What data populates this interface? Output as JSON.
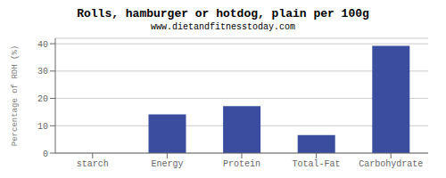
{
  "chart_data": {
    "type": "bar",
    "title": "Rolls, hamburger or hotdog, plain per 100g",
    "subtitle": "www.dietandfitnesstoday.com",
    "ylabel": "Percentage of RDH (%)",
    "categories": [
      "starch",
      "Energy",
      "Protein",
      "Total-Fat",
      "Carbohydrate"
    ],
    "values": [
      0,
      14.2,
      17.2,
      6.6,
      39.2
    ],
    "color": "#3a4d9f",
    "ylim": [
      0,
      42
    ],
    "yticks": [
      0,
      10,
      20,
      30,
      40
    ],
    "grid": true
  }
}
